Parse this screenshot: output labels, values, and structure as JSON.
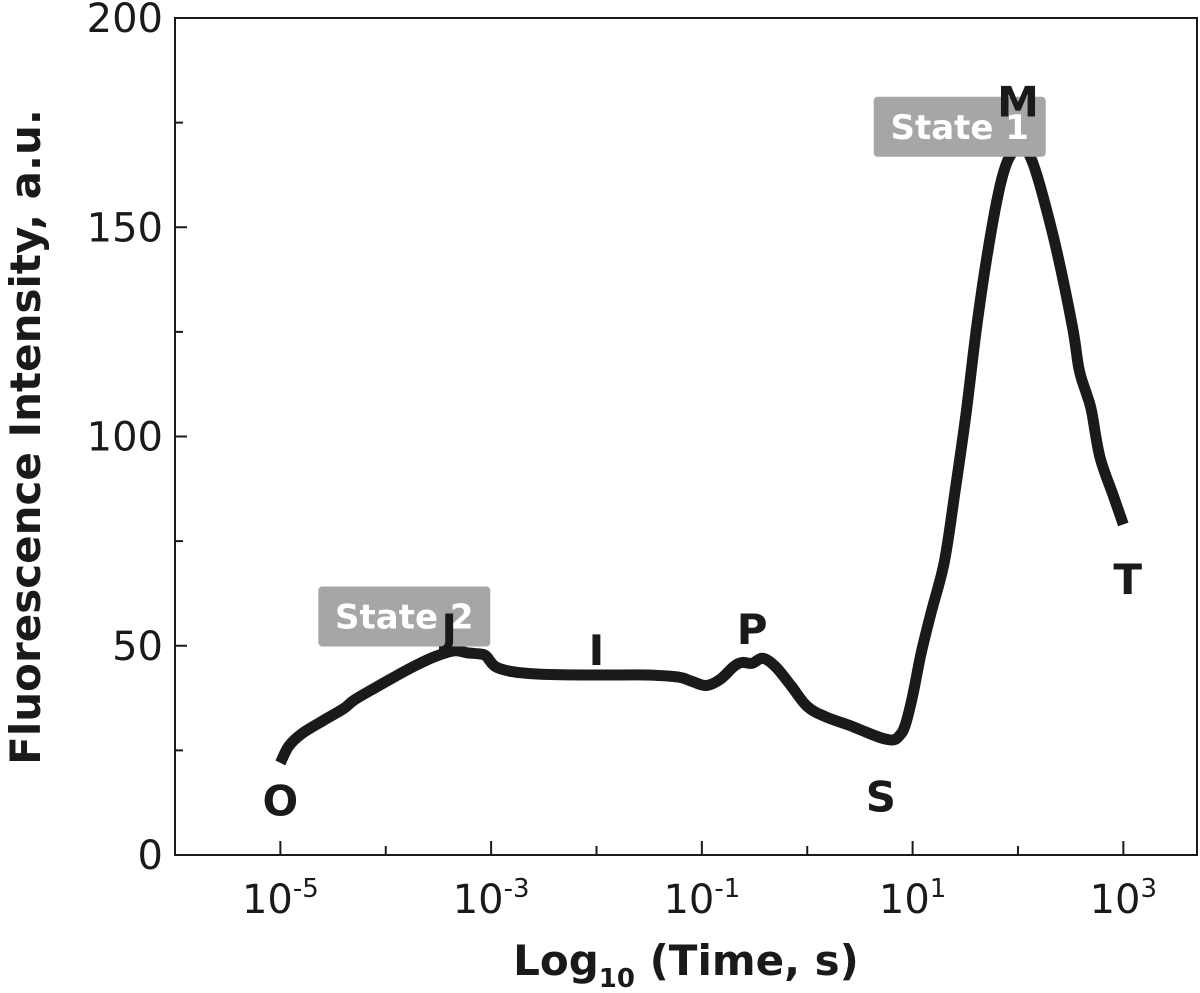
{
  "chart_data": {
    "type": "line",
    "title": "",
    "xlabel": "Log",
    "xlabel_subscript": "10",
    "xlabel_rest": " (Time, s)",
    "ylabel": "Fluorescence Intensity, a.u.",
    "x_scale": "log",
    "xlim": [
      1e-06,
      5000
    ],
    "ylim": [
      0,
      200
    ],
    "x_ticks": [
      {
        "base": "10",
        "exp": "-5",
        "value": 1e-05
      },
      {
        "base": "10",
        "exp": "-3",
        "value": 0.001
      },
      {
        "base": "10",
        "exp": "-1",
        "value": 0.1
      },
      {
        "base": "10",
        "exp": "1",
        "value": 10
      },
      {
        "base": "10",
        "exp": "3",
        "value": 1000
      }
    ],
    "y_ticks": [
      {
        "label": "0",
        "value": 0
      },
      {
        "label": "50",
        "value": 50
      },
      {
        "label": "100",
        "value": 100
      },
      {
        "label": "150",
        "value": 150
      },
      {
        "label": "200",
        "value": 200
      }
    ],
    "grid": false,
    "series": [
      {
        "color": "#1a1a1a",
        "points": [
          [
            1e-05,
            22
          ],
          [
            1.2e-05,
            26
          ],
          [
            1.6e-05,
            29
          ],
          [
            2.5e-05,
            32
          ],
          [
            4e-05,
            35
          ],
          [
            5e-05,
            37
          ],
          [
            8e-05,
            40
          ],
          [
            0.00013,
            43
          ],
          [
            0.0002,
            45.5
          ],
          [
            0.0003,
            47.5
          ],
          [
            0.00045,
            48.8
          ],
          [
            0.0006,
            48.3
          ],
          [
            0.0008,
            48
          ],
          [
            0.0009,
            47.5
          ],
          [
            0.0011,
            45
          ],
          [
            0.0016,
            43.8
          ],
          [
            0.003,
            43.2
          ],
          [
            0.01,
            43
          ],
          [
            0.03,
            43
          ],
          [
            0.06,
            42.5
          ],
          [
            0.08,
            41.5
          ],
          [
            0.11,
            40.5
          ],
          [
            0.15,
            42
          ],
          [
            0.2,
            45
          ],
          [
            0.24,
            46
          ],
          [
            0.3,
            45.8
          ],
          [
            0.38,
            47
          ],
          [
            0.5,
            45
          ],
          [
            0.7,
            40.5
          ],
          [
            1.0,
            35.5
          ],
          [
            1.5,
            33
          ],
          [
            2.5,
            31
          ],
          [
            3.5,
            29.5
          ],
          [
            5.0,
            28
          ],
          [
            6.5,
            27.5
          ],
          [
            7.5,
            28.5
          ],
          [
            8.5,
            31
          ],
          [
            10,
            38
          ],
          [
            12,
            48
          ],
          [
            15,
            58
          ],
          [
            20,
            70
          ],
          [
            25,
            86
          ],
          [
            32,
            105
          ],
          [
            40,
            125
          ],
          [
            50,
            142
          ],
          [
            65,
            158
          ],
          [
            80,
            166
          ],
          [
            100,
            169
          ],
          [
            120,
            168.5
          ],
          [
            140,
            165
          ],
          [
            170,
            158
          ],
          [
            230,
            145
          ],
          [
            330,
            126
          ],
          [
            380,
            116
          ],
          [
            450,
            110
          ],
          [
            500,
            106
          ],
          [
            600,
            95
          ],
          [
            800,
            86
          ],
          [
            1000,
            79
          ]
        ]
      }
    ],
    "point_labels": [
      {
        "text": "O",
        "x": 1e-05,
        "y": 13
      },
      {
        "text": "J",
        "x": 0.0004,
        "y": 54
      },
      {
        "text": "I",
        "x": 0.01,
        "y": 49
      },
      {
        "text": "P",
        "x": 0.3,
        "y": 54
      },
      {
        "text": "S",
        "x": 5.0,
        "y": 14
      },
      {
        "text": "M",
        "x": 100,
        "y": 180
      },
      {
        "text": "T",
        "x": 1100,
        "y": 66
      }
    ],
    "annotations": [
      {
        "text": "State 2",
        "x": 0.00015,
        "y": 57
      },
      {
        "text": "State 1",
        "x": 28,
        "y": 174
      }
    ]
  }
}
